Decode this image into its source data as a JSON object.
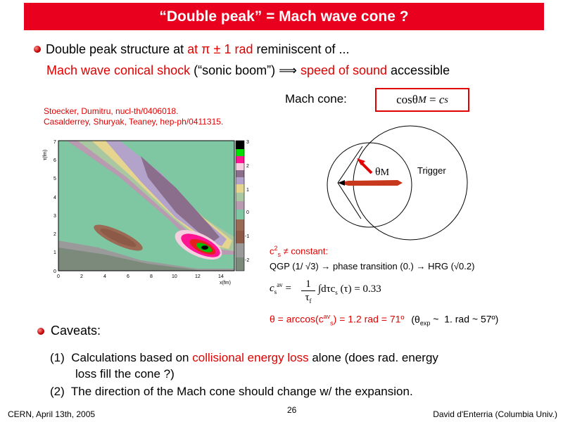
{
  "title": "“Double peak” = Mach wave cone ?",
  "bullet1": {
    "prefix": "Double peak structure at ",
    "at_pi": "at π ± 1 rad",
    "suffix": " reminiscent of ..."
  },
  "line2": {
    "mach_shock": "Mach wave conical shock",
    "sonic": " (“sonic boom”) ",
    "implies": "⟹",
    "speed": " speed of sound",
    "accessible": " accessible"
  },
  "refs": [
    "Stoecker, Dumitru, nucl-th/0406018.",
    "Casalderrey, Shuryak, Teaney, hep-ph/0411315."
  ],
  "mach_cone_label": "Mach cone:",
  "formula": {
    "cos": "cos",
    "theta": "θ",
    "sub_m": "M",
    "eq": " = ",
    "c": "c",
    "sub_s": "s"
  },
  "diagram": {
    "theta_label": "θ",
    "theta_sub": "M",
    "trigger": "Trigger"
  },
  "plot": {
    "ylabel": "τ(fm)",
    "xlabel": "x(fm)",
    "yticks": [
      "0",
      "1",
      "2",
      "3",
      "4",
      "5",
      "6",
      "7"
    ],
    "xticks": [
      "0",
      "2",
      "4",
      "6",
      "8",
      "10",
      "12",
      "14"
    ],
    "colorbar_ticks": [
      "3",
      "2",
      "1",
      "0",
      "-1",
      "-2"
    ]
  },
  "notes": {
    "c2s": "c",
    "c2s_sup": "2",
    "c2s_sub": "s",
    "c2s_text": " ≠ constant:",
    "qgp": "QGP (1/ √3) → phase transition (0.) → HRG (√0.2)",
    "avg_c": "c",
    "avg_sub": "s",
    "avg_sup": "av",
    "avg_eq": " = ",
    "frac_num": "1",
    "frac_den": "τ",
    "frac_den_sub": "f",
    "integral": "∫dτc",
    "integral_sub": "s",
    "integral_tail": " (τ) = 0.33",
    "theta_result": "θ = arccos(c",
    "theta_result_sup": "av",
    "theta_result_sub": "s",
    "theta_result_tail": ") = 1.2 rad = 71º",
    "theta_exp": "(θ",
    "theta_exp_sub": "exp",
    "theta_exp_tail": " ~  1. rad ~ 57º)"
  },
  "caveats": {
    "heading": "Caveats:",
    "item1_prefix": "(1)  Calculations based on ",
    "item1_red": "collisional energy loss",
    "item1_suffix": " alone (does rad. energy",
    "item1_cont": "loss fill the cone ?)",
    "item2": "(2)  The direction of the Mach cone should change w/ the expansion."
  },
  "footer": {
    "left": "CERN, April 13th, 2005",
    "center": "26",
    "right": "David d'Enterria (Columbia Univ.)"
  },
  "colors": {
    "accent": "#e00000",
    "title_bg": "#e8001e"
  }
}
